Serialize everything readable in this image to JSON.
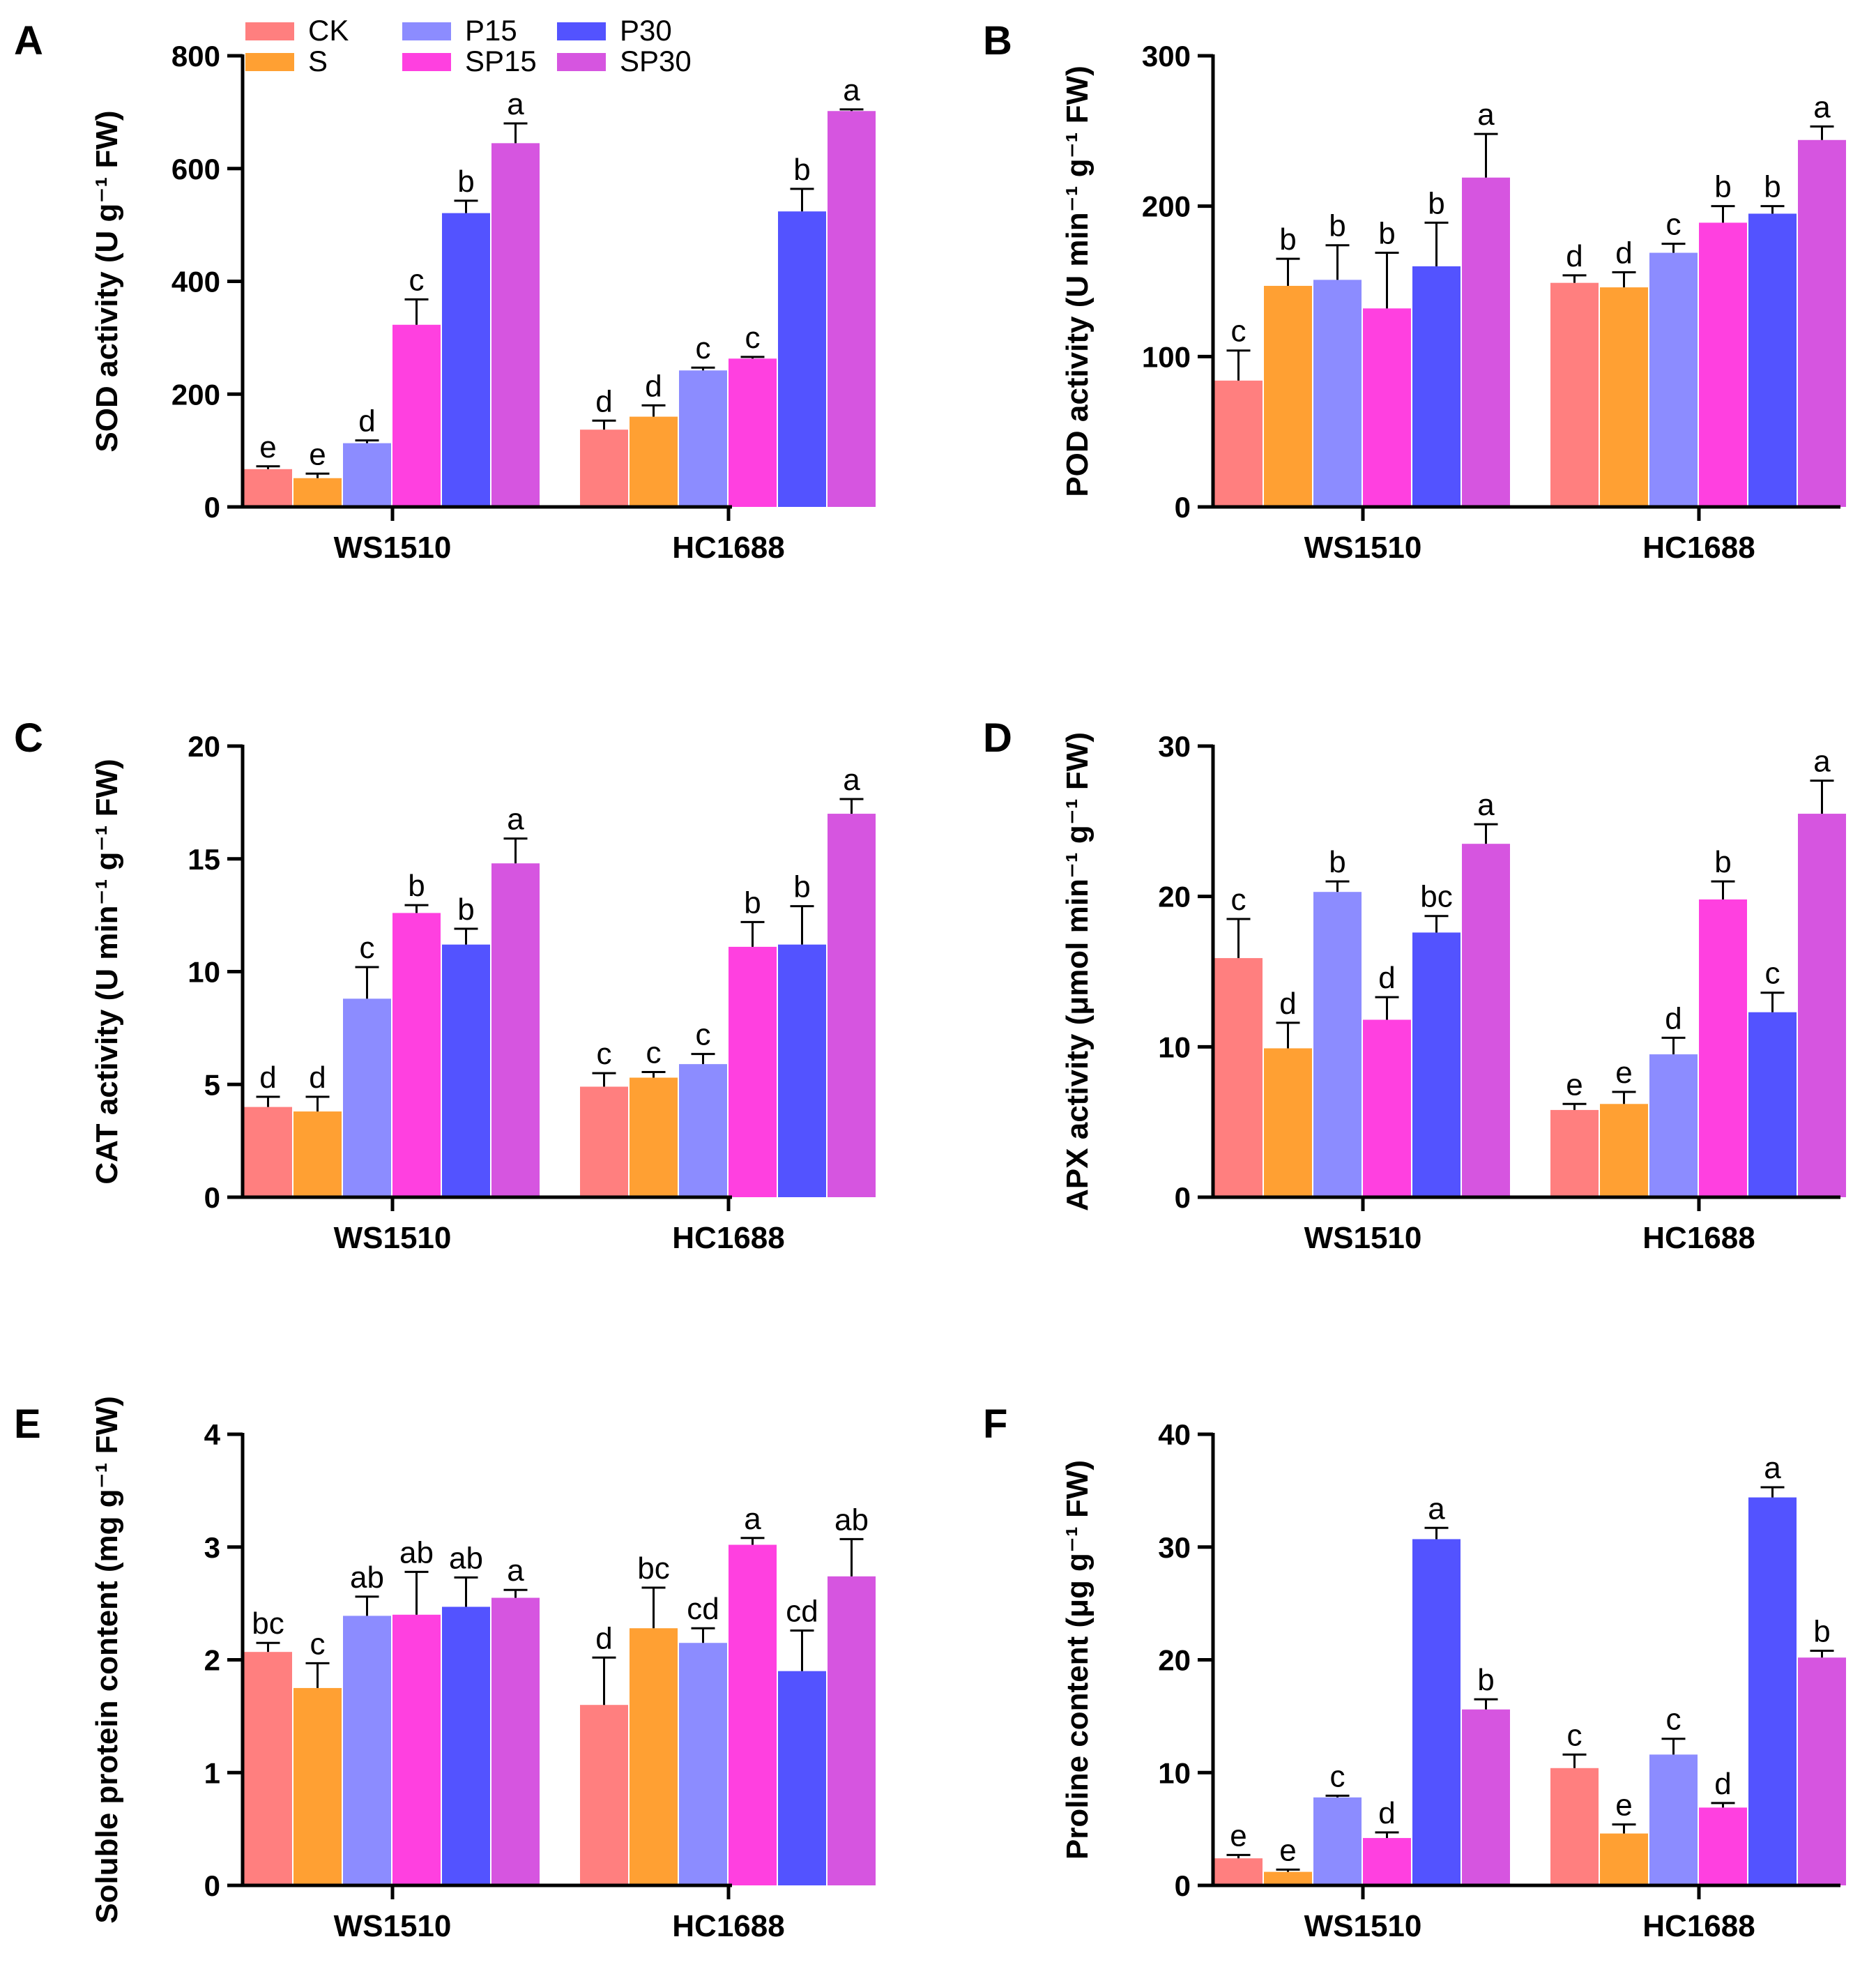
{
  "series_names": [
    "CK",
    "S",
    "P15",
    "SP15",
    "P30",
    "SP30"
  ],
  "series_colors": [
    "#FF7F7F",
    "#FFA033",
    "#8C8CFF",
    "#FF40E0",
    "#5353FF",
    "#D655E0"
  ],
  "chart_data": [
    {
      "panel": "A",
      "type": "bar",
      "ylabel": "SOD activity (U g⁻¹ FW)",
      "ylim": [
        0,
        800
      ],
      "yticks": [
        0,
        200,
        400,
        600,
        800
      ],
      "categories": [
        "WS1510",
        "HC1688"
      ],
      "series": [
        {
          "name": "CK",
          "values": [
            67,
            137
          ],
          "errors": [
            5,
            16
          ],
          "letters": [
            "e",
            "d"
          ]
        },
        {
          "name": "S",
          "values": [
            51,
            160
          ],
          "errors": [
            8,
            20
          ],
          "letters": [
            "e",
            "d"
          ]
        },
        {
          "name": "P15",
          "values": [
            113,
            242
          ],
          "errors": [
            5,
            5
          ],
          "letters": [
            "d",
            "c"
          ]
        },
        {
          "name": "SP15",
          "values": [
            323,
            263
          ],
          "errors": [
            45,
            3
          ],
          "letters": [
            "c",
            "c"
          ]
        },
        {
          "name": "P30",
          "values": [
            521,
            524
          ],
          "errors": [
            22,
            40
          ],
          "letters": [
            "b",
            "b"
          ]
        },
        {
          "name": "SP30",
          "values": [
            645,
            702
          ],
          "errors": [
            35,
            3
          ],
          "letters": [
            "a",
            "a"
          ]
        }
      ]
    },
    {
      "panel": "B",
      "type": "bar",
      "ylabel": "POD activity (U min⁻¹ g⁻¹ FW)",
      "ylim": [
        0,
        300
      ],
      "yticks": [
        0,
        100,
        200,
        300
      ],
      "categories": [
        "WS1510",
        "HC1688"
      ],
      "series": [
        {
          "name": "CK",
          "values": [
            84,
            149
          ],
          "errors": [
            20,
            5
          ],
          "letters": [
            "c",
            "d"
          ]
        },
        {
          "name": "S",
          "values": [
            147,
            146
          ],
          "errors": [
            18,
            10
          ],
          "letters": [
            "b",
            "d"
          ]
        },
        {
          "name": "P15",
          "values": [
            151,
            169
          ],
          "errors": [
            23,
            6
          ],
          "letters": [
            "b",
            "c"
          ]
        },
        {
          "name": "SP15",
          "values": [
            132,
            189
          ],
          "errors": [
            37,
            11
          ],
          "letters": [
            "b",
            "b"
          ]
        },
        {
          "name": "P30",
          "values": [
            160,
            195
          ],
          "errors": [
            29,
            5
          ],
          "letters": [
            "b",
            "b"
          ]
        },
        {
          "name": "SP30",
          "values": [
            219,
            244
          ],
          "errors": [
            29,
            9
          ],
          "letters": [
            "a",
            "a"
          ]
        }
      ]
    },
    {
      "panel": "C",
      "type": "bar",
      "ylabel": "CAT activity (U min⁻¹ g⁻¹ FW)",
      "ylim": [
        0,
        20
      ],
      "yticks": [
        0,
        5,
        10,
        15,
        20
      ],
      "categories": [
        "WS1510",
        "HC1688"
      ],
      "series": [
        {
          "name": "CK",
          "values": [
            4.0,
            4.9
          ],
          "errors": [
            0.45,
            0.6
          ],
          "letters": [
            "d",
            "c"
          ]
        },
        {
          "name": "S",
          "values": [
            3.8,
            5.3
          ],
          "errors": [
            0.65,
            0.25
          ],
          "letters": [
            "d",
            "c"
          ]
        },
        {
          "name": "P15",
          "values": [
            8.8,
            5.9
          ],
          "errors": [
            1.4,
            0.45
          ],
          "letters": [
            "c",
            "c"
          ]
        },
        {
          "name": "SP15",
          "values": [
            12.6,
            11.1
          ],
          "errors": [
            0.35,
            1.1
          ],
          "letters": [
            "b",
            "b"
          ]
        },
        {
          "name": "P30",
          "values": [
            11.2,
            11.2
          ],
          "errors": [
            0.7,
            1.7
          ],
          "letters": [
            "b",
            "b"
          ]
        },
        {
          "name": "SP30",
          "values": [
            14.8,
            17.0
          ],
          "errors": [
            1.1,
            0.65
          ],
          "letters": [
            "a",
            "a"
          ]
        }
      ]
    },
    {
      "panel": "D",
      "type": "bar",
      "ylabel": "APX activity (μmol min⁻¹ g⁻¹ FW)",
      "ylim": [
        0,
        30
      ],
      "yticks": [
        0,
        10,
        20,
        30
      ],
      "categories": [
        "WS1510",
        "HC1688"
      ],
      "series": [
        {
          "name": "CK",
          "values": [
            15.9,
            5.8
          ],
          "errors": [
            2.6,
            0.4
          ],
          "letters": [
            "c",
            "e"
          ]
        },
        {
          "name": "S",
          "values": [
            9.9,
            6.2
          ],
          "errors": [
            1.7,
            0.8
          ],
          "letters": [
            "d",
            "e"
          ]
        },
        {
          "name": "P15",
          "values": [
            20.3,
            9.5
          ],
          "errors": [
            0.7,
            1.1
          ],
          "letters": [
            "b",
            "d"
          ]
        },
        {
          "name": "SP15",
          "values": [
            11.8,
            19.8
          ],
          "errors": [
            1.5,
            1.2
          ],
          "letters": [
            "d",
            "b"
          ]
        },
        {
          "name": "P30",
          "values": [
            17.6,
            12.3
          ],
          "errors": [
            1.1,
            1.3
          ],
          "letters": [
            "bc",
            "c"
          ]
        },
        {
          "name": "SP30",
          "values": [
            23.5,
            25.5
          ],
          "errors": [
            1.3,
            2.2
          ],
          "letters": [
            "a",
            "a"
          ]
        }
      ]
    },
    {
      "panel": "E",
      "type": "bar",
      "ylabel": "Soluble protein content (mg g⁻¹ FW)",
      "ylim": [
        0,
        4
      ],
      "yticks": [
        0,
        1,
        2,
        3,
        4
      ],
      "categories": [
        "WS1510",
        "HC1688"
      ],
      "series": [
        {
          "name": "CK",
          "values": [
            2.07,
            1.6
          ],
          "errors": [
            0.08,
            0.42
          ],
          "letters": [
            "bc",
            "d"
          ]
        },
        {
          "name": "S",
          "values": [
            1.75,
            2.28
          ],
          "errors": [
            0.22,
            0.36
          ],
          "letters": [
            "c",
            "bc"
          ]
        },
        {
          "name": "P15",
          "values": [
            2.39,
            2.15
          ],
          "errors": [
            0.17,
            0.13
          ],
          "letters": [
            "ab",
            "cd"
          ]
        },
        {
          "name": "SP15",
          "values": [
            2.4,
            3.02
          ],
          "errors": [
            0.38,
            0.06
          ],
          "letters": [
            "ab",
            "a"
          ]
        },
        {
          "name": "P30",
          "values": [
            2.47,
            1.9
          ],
          "errors": [
            0.26,
            0.36
          ],
          "letters": [
            "ab",
            "cd"
          ]
        },
        {
          "name": "SP30",
          "values": [
            2.55,
            2.74
          ],
          "errors": [
            0.07,
            0.33
          ],
          "letters": [
            "a",
            "ab"
          ]
        }
      ]
    },
    {
      "panel": "F",
      "type": "bar",
      "ylabel": "Proline content (μg g⁻¹ FW)",
      "ylim": [
        0,
        40
      ],
      "yticks": [
        0,
        10,
        20,
        30,
        40
      ],
      "categories": [
        "WS1510",
        "HC1688"
      ],
      "series": [
        {
          "name": "CK",
          "values": [
            2.4,
            10.4
          ],
          "errors": [
            0.3,
            1.2
          ],
          "letters": [
            "e",
            "c"
          ]
        },
        {
          "name": "S",
          "values": [
            1.2,
            4.6
          ],
          "errors": [
            0.2,
            0.8
          ],
          "letters": [
            "e",
            "e"
          ]
        },
        {
          "name": "P15",
          "values": [
            7.8,
            11.6
          ],
          "errors": [
            0.15,
            1.4
          ],
          "letters": [
            "c",
            "c"
          ]
        },
        {
          "name": "SP15",
          "values": [
            4.2,
            6.9
          ],
          "errors": [
            0.5,
            0.4
          ],
          "letters": [
            "d",
            "d"
          ]
        },
        {
          "name": "P30",
          "values": [
            30.7,
            34.4
          ],
          "errors": [
            1.0,
            0.9
          ],
          "letters": [
            "a",
            "a"
          ]
        },
        {
          "name": "SP30",
          "values": [
            15.6,
            20.2
          ],
          "errors": [
            0.9,
            0.6
          ],
          "letters": [
            "b",
            "b"
          ]
        }
      ]
    }
  ]
}
